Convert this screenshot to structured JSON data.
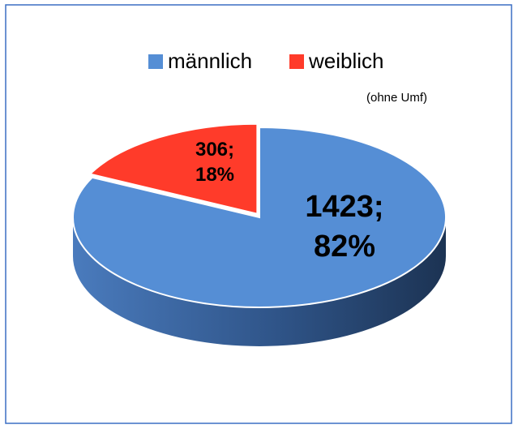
{
  "chart_data": {
    "type": "pie",
    "categories": [
      "männlich",
      "weiblich"
    ],
    "values": [
      1423,
      306
    ],
    "value_labels": [
      "1423; 82%",
      "306; 18%"
    ],
    "colors": [
      "#558ed5",
      "#ff3b2a"
    ],
    "annotation": "(ohne Umf)",
    "legend": "top"
  }
}
